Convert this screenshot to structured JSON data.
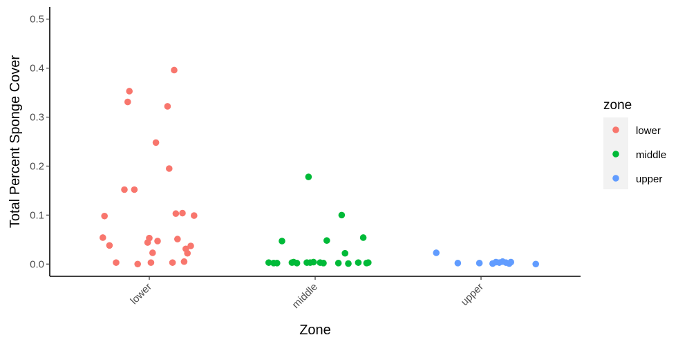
{
  "chart_data": {
    "type": "scatter",
    "xlabel": "Zone",
    "ylabel": "Total Percent Sponge Cover",
    "categories": [
      "lower",
      "middle",
      "upper"
    ],
    "ylim": [
      -0.025,
      0.525
    ],
    "yticks": [
      0.0,
      0.1,
      0.2,
      0.3,
      0.4,
      0.5
    ],
    "ytick_labels": [
      "0.0",
      "0.1",
      "0.2",
      "0.3",
      "0.4",
      "0.5"
    ],
    "grid": false,
    "legend": {
      "title": "zone",
      "placement": "right"
    },
    "series": [
      {
        "name": "lower",
        "color": "#F8766D",
        "points": [
          [
            0.72,
            0.054
          ],
          [
            0.73,
            0.098
          ],
          [
            0.76,
            0.038
          ],
          [
            0.8,
            0.003
          ],
          [
            0.85,
            0.152
          ],
          [
            0.87,
            0.331
          ],
          [
            0.88,
            0.353
          ],
          [
            0.91,
            0.152
          ],
          [
            0.93,
            0.0
          ],
          [
            0.99,
            0.044
          ],
          [
            1.0,
            0.053
          ],
          [
            1.01,
            0.003
          ],
          [
            1.02,
            0.023
          ],
          [
            1.04,
            0.248
          ],
          [
            1.05,
            0.047
          ],
          [
            1.11,
            0.322
          ],
          [
            1.12,
            0.195
          ],
          [
            1.14,
            0.003
          ],
          [
            1.15,
            0.396
          ],
          [
            1.16,
            0.103
          ],
          [
            1.17,
            0.051
          ],
          [
            1.2,
            0.104
          ],
          [
            1.21,
            0.005
          ],
          [
            1.22,
            0.031
          ],
          [
            1.23,
            0.022
          ],
          [
            1.25,
            0.037
          ],
          [
            1.27,
            0.099
          ]
        ]
      },
      {
        "name": "middle",
        "color": "#00BA38",
        "points": [
          [
            1.72,
            0.003
          ],
          [
            1.75,
            0.002
          ],
          [
            1.77,
            0.002
          ],
          [
            1.8,
            0.047
          ],
          [
            1.86,
            0.003
          ],
          [
            1.87,
            0.004
          ],
          [
            1.89,
            0.002
          ],
          [
            1.95,
            0.003
          ],
          [
            1.96,
            0.178
          ],
          [
            1.97,
            0.003
          ],
          [
            1.99,
            0.004
          ],
          [
            2.03,
            0.003
          ],
          [
            2.05,
            0.002
          ],
          [
            2.07,
            0.048
          ],
          [
            2.14,
            0.002
          ],
          [
            2.16,
            0.1
          ],
          [
            2.18,
            0.022
          ],
          [
            2.2,
            0.001
          ],
          [
            2.26,
            0.003
          ],
          [
            2.29,
            0.054
          ],
          [
            2.31,
            0.002
          ],
          [
            2.32,
            0.003
          ]
        ]
      },
      {
        "name": "upper",
        "color": "#619CFF",
        "points": [
          [
            2.73,
            0.023
          ],
          [
            2.86,
            0.002
          ],
          [
            2.99,
            0.002
          ],
          [
            3.07,
            0.001
          ],
          [
            3.09,
            0.004
          ],
          [
            3.11,
            0.003
          ],
          [
            3.13,
            0.005
          ],
          [
            3.15,
            0.003
          ],
          [
            3.17,
            0.001
          ],
          [
            3.18,
            0.004
          ],
          [
            3.33,
            0.0
          ]
        ]
      }
    ]
  }
}
